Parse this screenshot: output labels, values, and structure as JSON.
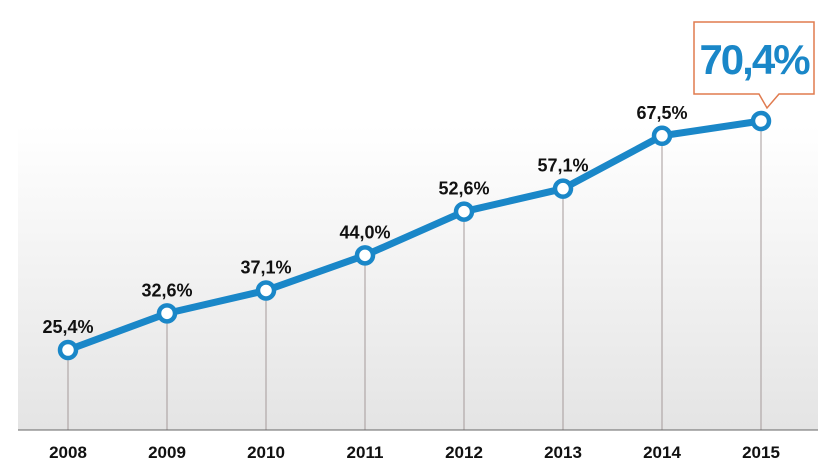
{
  "chart_data": {
    "type": "line",
    "categories": [
      "2008",
      "2009",
      "2010",
      "2011",
      "2012",
      "2013",
      "2014",
      "2015"
    ],
    "values": [
      25.4,
      32.6,
      37.1,
      44.0,
      52.6,
      57.1,
      67.5,
      70.4
    ],
    "data_labels": [
      "25,4%",
      "32,6%",
      "37,1%",
      "44,0%",
      "52,6%",
      "57,1%",
      "67,5%",
      ""
    ],
    "callout": {
      "label": "70,4%",
      "category": "2015"
    },
    "title": "",
    "xlabel": "",
    "ylabel": "",
    "ylim": [
      0,
      90
    ],
    "grid": false,
    "legend": "none",
    "colors": {
      "line": "#1a87c8",
      "marker_fill": "#ffffff",
      "drop_line": "#a59a9a",
      "axis": "#666666",
      "callout_border": "#e07b4f",
      "callout_text": "#1a87c8",
      "background_top": "#ffffff",
      "background_bottom": "#e6e6e6"
    }
  }
}
